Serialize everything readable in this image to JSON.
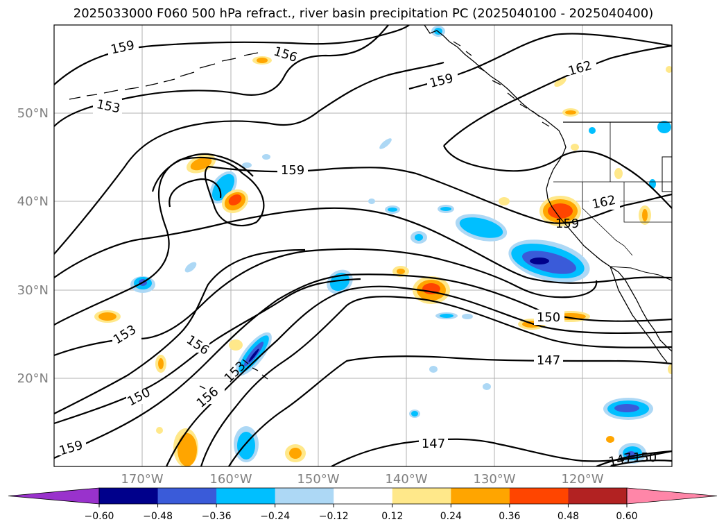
{
  "title": "2025033000 F060 500 hPa refract., river basin precipitation PC (2025040100 - 2025040400)",
  "lon_labels": [
    "170°W",
    "160°W",
    "150°W",
    "140°W",
    "130°W",
    "120°W"
  ],
  "lat_labels": [
    "50°N",
    "40°N",
    "30°N",
    "20°N"
  ],
  "colorbar": {
    "ticks": [
      "−0.60",
      "−0.48",
      "−0.36",
      "−0.24",
      "−0.12",
      "0.12",
      "0.24",
      "0.36",
      "0.48",
      "0.60"
    ],
    "colors": [
      "#9932cc",
      "#00008b",
      "#3a5bd9",
      "#00bfff",
      "#add8f5",
      "#ffffff",
      "#ffe88a",
      "#ffa500",
      "#ff4500",
      "#b22222",
      "#ff86a8"
    ]
  },
  "contour_labels": [
    "159",
    "156",
    "153",
    "159",
    "162",
    "159",
    "162",
    "159",
    "150",
    "153",
    "156",
    "147",
    "150",
    "156",
    "153",
    "159",
    "147",
    "147",
    "150"
  ]
}
